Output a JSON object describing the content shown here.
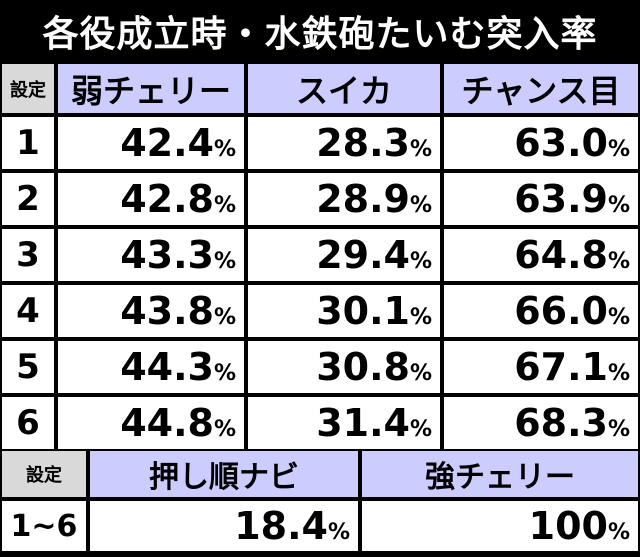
{
  "title": "各役成立時・水鉄砲たいむ突入率",
  "table1": {
    "setting_header": "設定",
    "columns": [
      "弱チェリー",
      "スイカ",
      "チャンス目"
    ],
    "rows": [
      {
        "setting": "1",
        "values": [
          "42.4",
          "28.3",
          "63.0"
        ]
      },
      {
        "setting": "2",
        "values": [
          "42.8",
          "28.9",
          "63.9"
        ]
      },
      {
        "setting": "3",
        "values": [
          "43.3",
          "29.4",
          "64.8"
        ]
      },
      {
        "setting": "4",
        "values": [
          "43.8",
          "30.1",
          "66.0"
        ]
      },
      {
        "setting": "5",
        "values": [
          "44.3",
          "30.8",
          "67.1"
        ]
      },
      {
        "setting": "6",
        "values": [
          "44.8",
          "31.4",
          "68.3"
        ]
      }
    ]
  },
  "table2": {
    "setting_header": "設定",
    "columns": [
      "押し順ナビ",
      "強チェリー"
    ],
    "rows": [
      {
        "setting": "1~6",
        "values": [
          "18.4",
          "100"
        ]
      }
    ]
  },
  "unit": "%"
}
